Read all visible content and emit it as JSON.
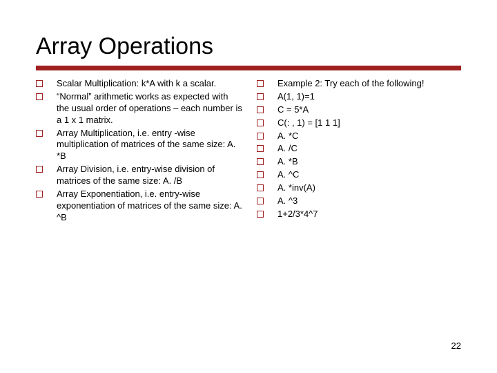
{
  "title": "Array Operations",
  "pageNumber": "22",
  "colors": {
    "accent": "#a02020",
    "text": "#000000",
    "background": "#ffffff"
  },
  "typography": {
    "title_fontsize": 34,
    "body_fontsize": 13,
    "font_family": "Verdana"
  },
  "leftColumn": [
    "Scalar Multiplication:  k*A with k a scalar.",
    "“Normal” arithmetic works as expected with the usual order of operations – each number is a 1 x 1 matrix.",
    "Array Multiplication, i.e. entry -wise multiplication of matrices of the same size: A. *B",
    "Array Division, i.e. entry-wise division of matrices of the same size:  A. /B",
    "Array Exponentiation, i.e. entry-wise exponentiation of matrices of the same size: A. ^B"
  ],
  "rightColumn": [
    "Example 2:  Try each of the following!",
    "A(1, 1)=1",
    "C = 5*A",
    "C(: , 1) = [1 1 1]",
    "A. *C",
    "A. /C",
    "A. *B",
    "A. ^C",
    "A. *inv(A)",
    "A. ^3",
    "1+2/3*4^7"
  ]
}
